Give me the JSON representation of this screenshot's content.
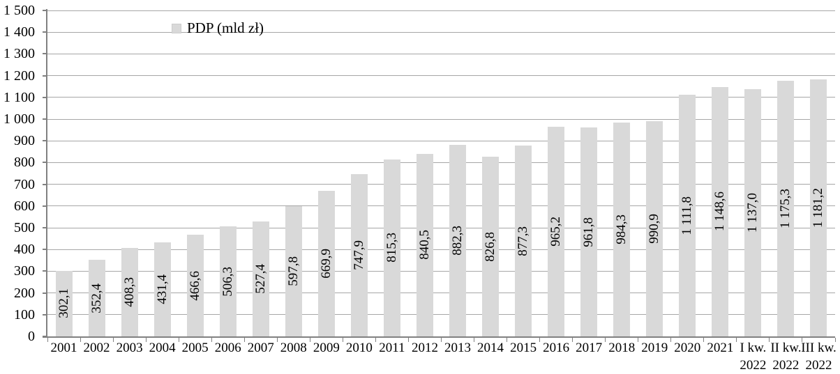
{
  "chart_data": {
    "type": "bar",
    "title": "",
    "legend": {
      "label": "PDP (mld zł)",
      "position": "top-center"
    },
    "categories": [
      "2001",
      "2002",
      "2003",
      "2004",
      "2005",
      "2006",
      "2007",
      "2008",
      "2009",
      "2010",
      "2011",
      "2012",
      "2013",
      "2014",
      "2015",
      "2016",
      "2017",
      "2018",
      "2019",
      "2020",
      "2021",
      "I kw.\n2022",
      "II kw.\n2022",
      "III kw.\n2022"
    ],
    "values": [
      302.1,
      352.4,
      408.3,
      431.4,
      466.6,
      506.3,
      527.4,
      597.8,
      669.9,
      747.9,
      815.3,
      840.5,
      882.3,
      826.8,
      877.3,
      965.2,
      961.8,
      984.3,
      990.9,
      1111.8,
      1148.6,
      1137.0,
      1175.3,
      1181.2
    ],
    "value_labels": [
      "302,1",
      "352,4",
      "408,3",
      "431,4",
      "466,6",
      "506,3",
      "527,4",
      "597,8",
      "669,9",
      "747,9",
      "815,3",
      "840,5",
      "882,3",
      "826,8",
      "877,3",
      "965,2",
      "961,8",
      "984,3",
      "990,9",
      "1 111,8",
      "1 148,6",
      "1 137,0",
      "1 175,3",
      "1 181,2"
    ],
    "xlabel": "",
    "ylabel": "",
    "ylim": [
      0,
      1500
    ],
    "ytick_step": 100,
    "ytick_labels": [
      "0",
      "100",
      "200",
      "300",
      "400",
      "500",
      "600",
      "700",
      "800",
      "900",
      "1 000",
      "1 100",
      "1 200",
      "1 300",
      "1 400",
      "1 500"
    ],
    "grid": true,
    "legend_visible": true,
    "colors": {
      "bar": "#d9d9d9",
      "grid": "#a6a6a6",
      "axis": "#808080",
      "text": "#000000",
      "background": "#ffffff"
    }
  }
}
